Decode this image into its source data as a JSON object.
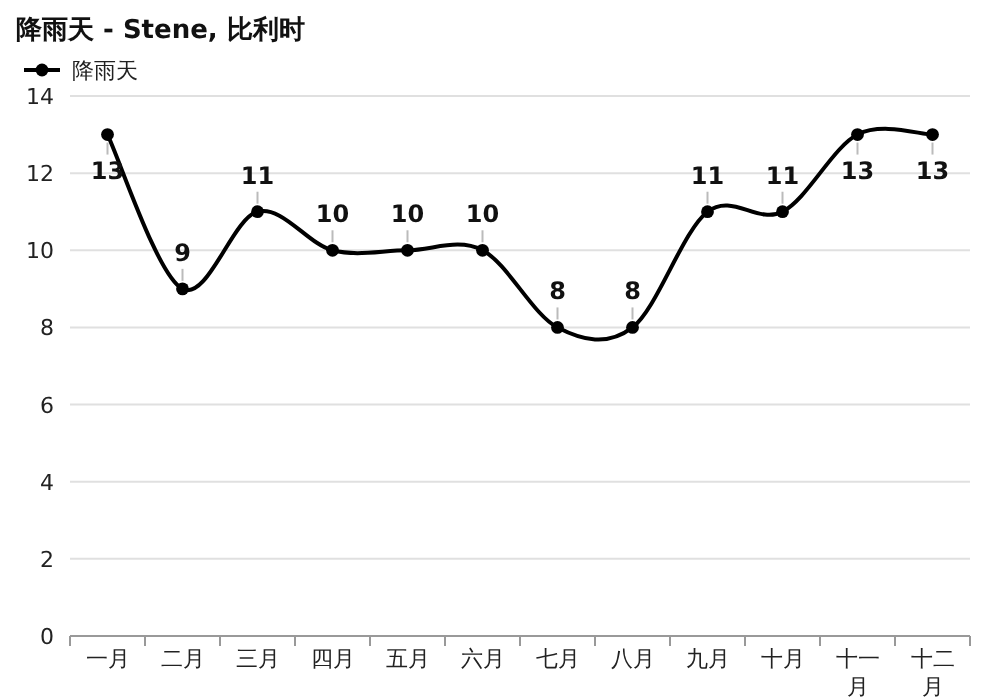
{
  "chart_data": {
    "type": "line",
    "title": "降雨天 - Stene, 比利时",
    "categories": [
      "一月",
      "二月",
      "三月",
      "四月",
      "五月",
      "六月",
      "七月",
      "八月",
      "九月",
      "十月",
      "十一月",
      "十二月"
    ],
    "series": [
      {
        "name": "降雨天",
        "color": "#000000",
        "values": [
          13,
          9,
          11,
          10,
          10,
          10,
          8,
          8,
          11,
          11,
          13,
          13
        ]
      }
    ],
    "ylim": [
      0,
      14
    ],
    "yticks": [
      0,
      2,
      4,
      6,
      8,
      10,
      12,
      14
    ],
    "grid": "y",
    "legend": "top left",
    "marker": "circle",
    "data_labels": true
  }
}
